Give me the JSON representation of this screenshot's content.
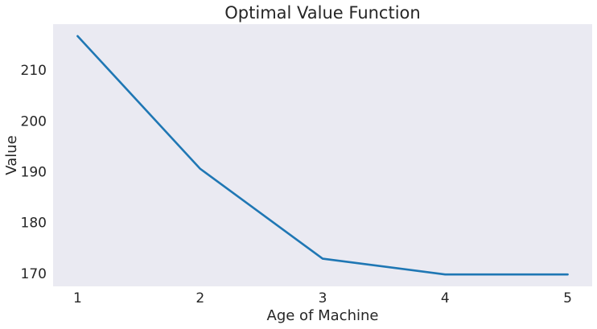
{
  "chart_data": {
    "type": "line",
    "title": "Optimal Value Function",
    "xlabel": "Age of Machine",
    "ylabel": "Value",
    "x": [
      1,
      2,
      3,
      4,
      5
    ],
    "series": [
      {
        "values": [
          216.7,
          190.6,
          172.9,
          169.8,
          169.8
        ],
        "color": "#1f77b4"
      }
    ],
    "x_ticks": [
      "1",
      "2",
      "3",
      "4",
      "5"
    ],
    "y_ticks": [
      170,
      180,
      190,
      200,
      210
    ],
    "xlim": [
      0.8,
      5.2
    ],
    "ylim": [
      167.45,
      219.05
    ],
    "grid": false,
    "background_color": "#eaeaf2"
  }
}
